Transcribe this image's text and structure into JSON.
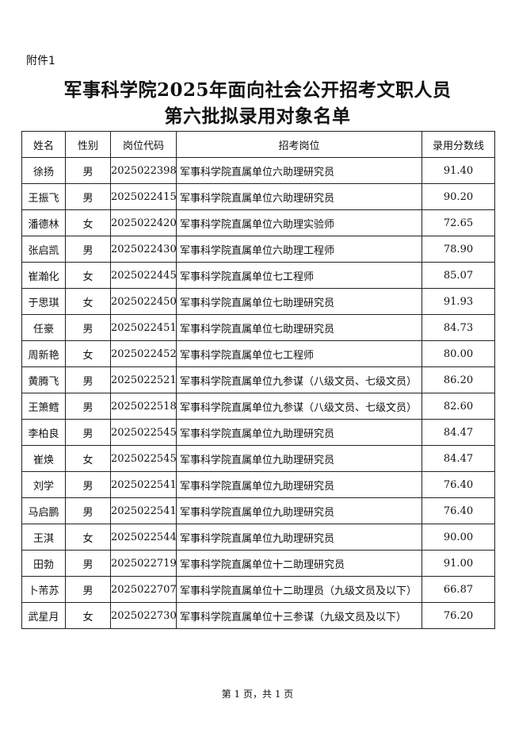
{
  "attachment_label": "附件1",
  "title_line1": "军事科学院2025年面向社会公开招考文职人员",
  "title_line2": "第六批拟录用对象名单",
  "table": {
    "headers": [
      "姓名",
      "性别",
      "岗位代码",
      "招考岗位",
      "录用分数线"
    ],
    "rows": [
      [
        "徐扬",
        "男",
        "2025022398",
        "军事科学院直属单位六助理研究员",
        "91.40"
      ],
      [
        "王振飞",
        "男",
        "2025022415",
        "军事科学院直属单位六助理研究员",
        "90.20"
      ],
      [
        "潘德林",
        "女",
        "2025022420",
        "军事科学院直属单位六助理实验师",
        "72.65"
      ],
      [
        "张启凯",
        "男",
        "2025022430",
        "军事科学院直属单位六助理工程师",
        "78.90"
      ],
      [
        "崔瀚化",
        "女",
        "2025022445",
        "军事科学院直属单位七工程师",
        "85.07"
      ],
      [
        "于思琪",
        "女",
        "2025022450",
        "军事科学院直属单位七助理研究员",
        "91.93"
      ],
      [
        "任豪",
        "男",
        "2025022451",
        "军事科学院直属单位七助理研究员",
        "84.73"
      ],
      [
        "周新艳",
        "女",
        "2025022452",
        "军事科学院直属单位七工程师",
        "80.00"
      ],
      [
        "黄腾飞",
        "男",
        "2025022521",
        "军事科学院直属单位九参谋（八级文员、七级文员）",
        "86.20"
      ],
      [
        "王箫鳕",
        "男",
        "2025022518",
        "军事科学院直属单位九参谋（八级文员、七级文员）",
        "82.60"
      ],
      [
        "李柏良",
        "男",
        "2025022545",
        "军事科学院直属单位九助理研究员",
        "84.47"
      ],
      [
        "崔焕",
        "女",
        "2025022545",
        "军事科学院直属单位九助理研究员",
        "84.47"
      ],
      [
        "刘学",
        "男",
        "2025022541",
        "军事科学院直属单位九助理研究员",
        "76.40"
      ],
      [
        "马启鹏",
        "男",
        "2025022541",
        "军事科学院直属单位九助理研究员",
        "76.40"
      ],
      [
        "王淇",
        "女",
        "2025022544",
        "军事科学院直属单位九助理研究员",
        "90.00"
      ],
      [
        "田勃",
        "男",
        "2025022719",
        "军事科学院直属单位十二助理研究员",
        "91.00"
      ],
      [
        "卜芾苏",
        "男",
        "2025022707",
        "军事科学院直属单位十二助理员（九级文员及以下）",
        "66.87"
      ],
      [
        "武星月",
        "女",
        "2025022730",
        "军事科学院直属单位十三参谋（九级文员及以下）",
        "76.20"
      ]
    ]
  },
  "footer": "第 1 页，共 1 页"
}
